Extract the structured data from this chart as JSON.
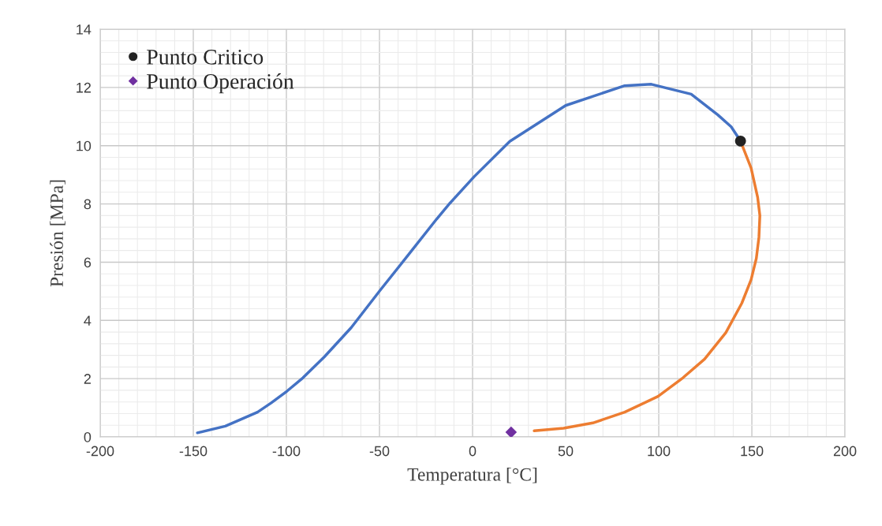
{
  "chart_data": {
    "type": "line",
    "xlabel": "Temperatura [°C]",
    "ylabel": "Presión [MPa]",
    "xlim": [
      -200,
      200
    ],
    "xticks": [
      -200,
      -150,
      -100,
      -50,
      0,
      50,
      100,
      150,
      200
    ],
    "ylim": [
      0,
      14
    ],
    "yticks": [
      0,
      2,
      4,
      6,
      8,
      10,
      12,
      14
    ],
    "grid": true,
    "legend": "top left",
    "line_style": "solid",
    "series": [
      {
        "color": "#4472c4",
        "x": [
          -147.8,
          -132.8,
          -115.5,
          -108.3,
          -99.7,
          -91.1,
          -79.6,
          -65.2,
          -49.7,
          -35,
          -19.3,
          -12.1,
          0.9,
          20,
          50,
          81.7,
          96,
          117.4,
          131.7,
          138.9,
          143.9
        ],
        "values": [
          0.14,
          0.37,
          0.85,
          1.16,
          1.57,
          2.03,
          2.75,
          3.75,
          5.03,
          6.21,
          7.48,
          8.03,
          8.94,
          10.15,
          11.38,
          12.06,
          12.11,
          11.77,
          11.06,
          10.65,
          10.16
        ]
      },
      {
        "color": "#ed7d31",
        "x": [
          143.9,
          149.6,
          153.1,
          154.3,
          153.8,
          152.4,
          149.6,
          144.6,
          136,
          124.6,
          113,
          99.6,
          81.7,
          64.6,
          48.9,
          33.1
        ],
        "values": [
          10.16,
          9.23,
          8.23,
          7.6,
          6.86,
          6.13,
          5.4,
          4.59,
          3.58,
          2.67,
          2.03,
          1.39,
          0.85,
          0.48,
          0.3,
          0.21
        ]
      },
      {
        "type": "scatter",
        "name": "Punto Critico",
        "color": "#222222",
        "marker": "circle",
        "x": [
          143.9
        ],
        "values": [
          10.16
        ]
      },
      {
        "type": "scatter",
        "name": "Punto Operación",
        "color": "#7030a0",
        "marker": "diamond",
        "x": [
          20.7
        ],
        "values": [
          0.16
        ]
      }
    ]
  }
}
